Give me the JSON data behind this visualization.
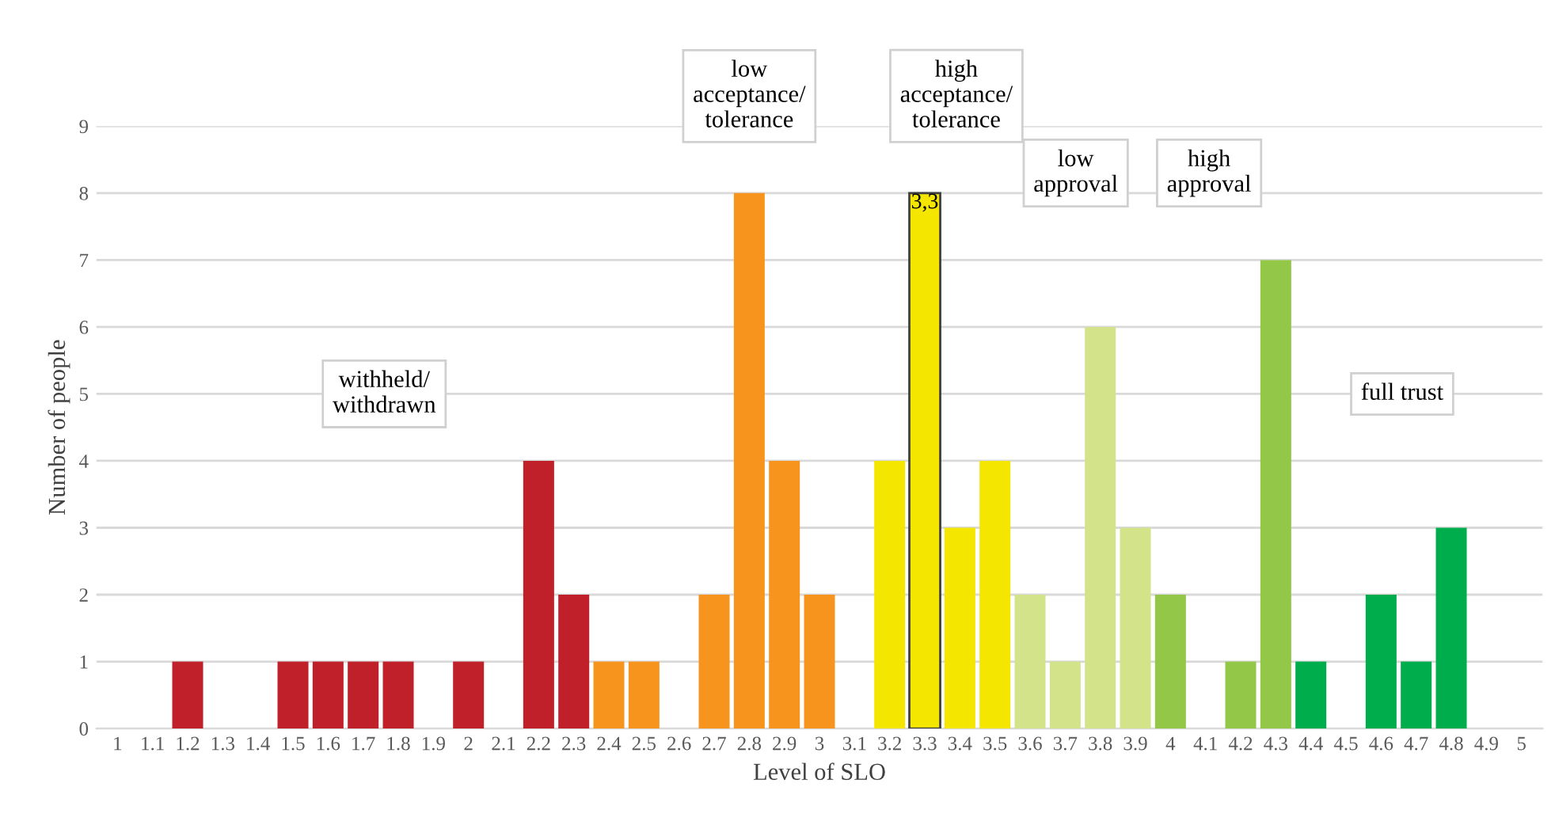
{
  "chart_data": {
    "type": "bar",
    "xlabel": "Level of SLO",
    "ylabel": "Number of people",
    "categories": [
      "1",
      "1.1",
      "1.2",
      "1.3",
      "1.4",
      "1.5",
      "1.6",
      "1.7",
      "1.8",
      "1.9",
      "2",
      "2.1",
      "2.2",
      "2.3",
      "2.4",
      "2.5",
      "2.6",
      "2.7",
      "2.8",
      "2.9",
      "3",
      "3.1",
      "3.2",
      "3.3",
      "3.4",
      "3.5",
      "3.6",
      "3.7",
      "3.8",
      "3.9",
      "4",
      "4.1",
      "4.2",
      "4.3",
      "4.4",
      "4.5",
      "4.6",
      "4.7",
      "4.8",
      "4.9",
      "5"
    ],
    "values": [
      0,
      0,
      1,
      0,
      0,
      1,
      1,
      1,
      1,
      0,
      1,
      0,
      4,
      2,
      1,
      1,
      0,
      2,
      8,
      4,
      2,
      0,
      4,
      8,
      3,
      4,
      2,
      1,
      6,
      3,
      2,
      0,
      1,
      7,
      1,
      0,
      2,
      1,
      3,
      0,
      0
    ],
    "colors": [
      "#c0202a",
      "#c0202a",
      "#c0202a",
      "#c0202a",
      "#c0202a",
      "#c0202a",
      "#c0202a",
      "#c0202a",
      "#c0202a",
      "#c0202a",
      "#c0202a",
      "#c0202a",
      "#c0202a",
      "#c0202a",
      "#f7941d",
      "#f7941d",
      "#f7941d",
      "#f7941d",
      "#f7941d",
      "#f7941d",
      "#f7941d",
      "#f5e600",
      "#f5e600",
      "#f5e600",
      "#f5e600",
      "#f5e600",
      "#d3e38a",
      "#d3e38a",
      "#d3e38a",
      "#d3e38a",
      "#92c748",
      "#92c748",
      "#92c748",
      "#92c748",
      "#00ad4c",
      "#00ad4c",
      "#00ad4c",
      "#00ad4c",
      "#00ad4c",
      "#00ad4c",
      "#00ad4c"
    ],
    "ylim": [
      0,
      9
    ],
    "yticks": [
      0,
      1,
      2,
      3,
      4,
      5,
      6,
      7,
      8,
      9
    ],
    "grid": "y",
    "annotations": [
      "withheld/\nwithdrawn",
      "low\nacceptance/\ntolerance",
      "high\nacceptance/\ntolerance",
      "low\napproval",
      "high\napproval",
      "full trust",
      {
        "text": "3,3",
        "x": "3.3",
        "y": 8
      }
    ]
  }
}
